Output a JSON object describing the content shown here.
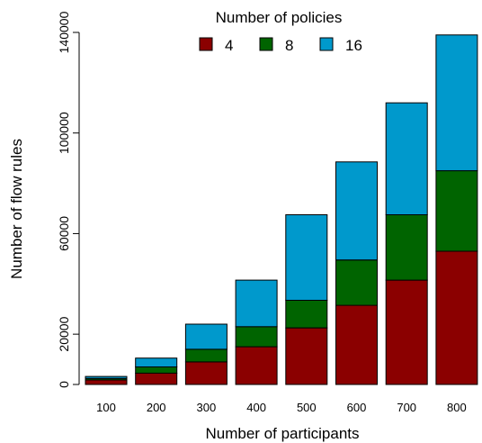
{
  "chart_data": {
    "type": "bar",
    "stacked": true,
    "categories": [
      "100",
      "200",
      "300",
      "400",
      "500",
      "600",
      "700",
      "800"
    ],
    "series": [
      {
        "name": "4",
        "color": "#8b0000",
        "values": [
          1800,
          4500,
          9000,
          15000,
          22500,
          31500,
          41500,
          53000
        ]
      },
      {
        "name": "8",
        "color": "#006400",
        "values": [
          600,
          2500,
          5000,
          8000,
          11000,
          18000,
          26000,
          32000
        ]
      },
      {
        "name": "16",
        "color": "#0099cc",
        "values": [
          800,
          3500,
          10000,
          18500,
          34000,
          39000,
          44500,
          54000
        ]
      }
    ],
    "xlabel": "Number of participants",
    "ylabel": "Number of flow rules",
    "ylim": [
      0,
      140000
    ],
    "yticks": [
      0,
      20000,
      60000,
      100000,
      140000
    ],
    "ytick_labels": [
      "0",
      "20000",
      "60000",
      "100000",
      "140000"
    ],
    "legend_title": "Number of policies",
    "legend_position": "top",
    "grid": false
  }
}
